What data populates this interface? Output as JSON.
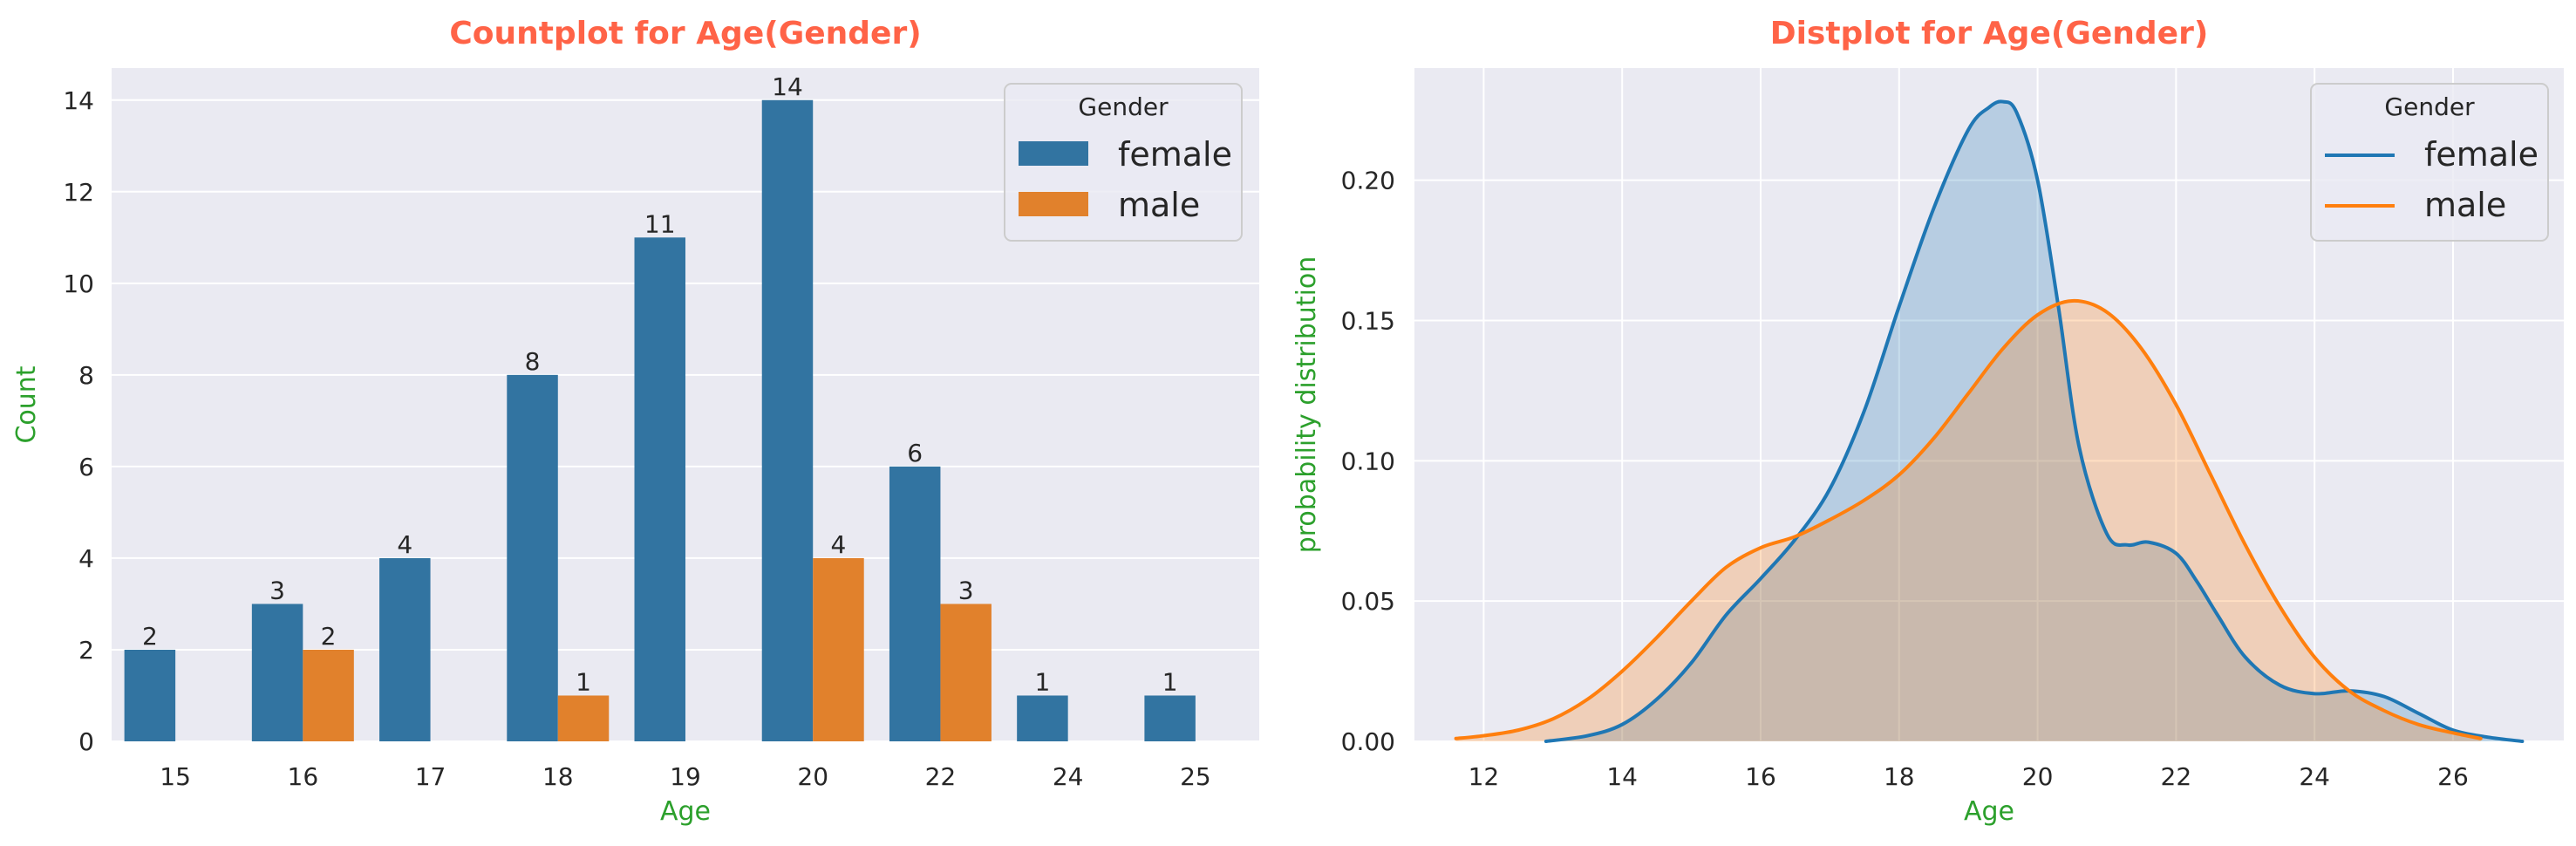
{
  "colors": {
    "female": "#3274a1",
    "male": "#e1812c",
    "female_line": "#1f77b4",
    "male_line": "#ff7f0e",
    "title": "#ff6347",
    "axis_label": "#2ca02c",
    "plot_bg": "#eaeaf2",
    "grid": "#ffffff"
  },
  "chart_data": [
    {
      "type": "bar",
      "title": "Countplot for Age(Gender)",
      "xlabel": "Age",
      "ylabel": "Count",
      "categories": [
        "15",
        "16",
        "17",
        "18",
        "19",
        "20",
        "22",
        "24",
        "25"
      ],
      "series": [
        {
          "name": "female",
          "values": [
            2,
            3,
            4,
            8,
            11,
            14,
            6,
            1,
            1
          ]
        },
        {
          "name": "male",
          "values": [
            null,
            2,
            null,
            1,
            null,
            4,
            3,
            null,
            null
          ]
        }
      ],
      "ylim": [
        0,
        14.7
      ],
      "yticks": [
        "0",
        "2",
        "4",
        "6",
        "8",
        "10",
        "12",
        "14"
      ],
      "legend": {
        "title": "Gender",
        "placement": "top-right"
      },
      "grid": true
    },
    {
      "type": "area",
      "title": "Distplot for Age(Gender)",
      "xlabel": "Age",
      "ylabel": "probability distribution",
      "xlim": [
        11.0,
        27.6
      ],
      "ylim": [
        0,
        0.24
      ],
      "xticks": [
        "12",
        "14",
        "16",
        "18",
        "20",
        "22",
        "24",
        "26"
      ],
      "yticks": [
        "0.00",
        "0.05",
        "0.10",
        "0.15",
        "0.20"
      ],
      "legend": {
        "title": "Gender",
        "placement": "top-right"
      },
      "grid": true,
      "series": [
        {
          "name": "female",
          "x": [
            12.9,
            13.5,
            14.0,
            14.5,
            15.0,
            15.5,
            16.0,
            16.5,
            17.0,
            17.5,
            18.0,
            18.5,
            19.0,
            19.3,
            19.5,
            19.7,
            20.0,
            20.3,
            20.6,
            21.0,
            21.3,
            21.6,
            22.0,
            22.3,
            22.6,
            23.0,
            23.5,
            24.0,
            24.5,
            25.0,
            25.5,
            26.0,
            26.5,
            27.0
          ],
          "y": [
            0.0,
            0.002,
            0.006,
            0.015,
            0.028,
            0.045,
            0.058,
            0.072,
            0.09,
            0.118,
            0.155,
            0.19,
            0.218,
            0.226,
            0.228,
            0.224,
            0.2,
            0.155,
            0.105,
            0.074,
            0.07,
            0.071,
            0.067,
            0.057,
            0.045,
            0.03,
            0.02,
            0.017,
            0.018,
            0.016,
            0.01,
            0.004,
            0.0015,
            0.0
          ]
        },
        {
          "name": "male",
          "x": [
            11.6,
            12.0,
            12.5,
            13.0,
            13.5,
            14.0,
            14.5,
            15.0,
            15.5,
            16.0,
            16.5,
            17.0,
            17.5,
            18.0,
            18.5,
            19.0,
            19.5,
            20.0,
            20.5,
            21.0,
            21.5,
            22.0,
            22.5,
            23.0,
            23.5,
            24.0,
            24.5,
            25.0,
            25.5,
            26.0,
            26.4
          ],
          "y": [
            0.001,
            0.002,
            0.004,
            0.008,
            0.015,
            0.025,
            0.037,
            0.05,
            0.062,
            0.069,
            0.073,
            0.079,
            0.086,
            0.095,
            0.108,
            0.124,
            0.14,
            0.152,
            0.157,
            0.153,
            0.14,
            0.12,
            0.095,
            0.07,
            0.048,
            0.03,
            0.018,
            0.011,
            0.006,
            0.003,
            0.001
          ]
        }
      ]
    }
  ]
}
